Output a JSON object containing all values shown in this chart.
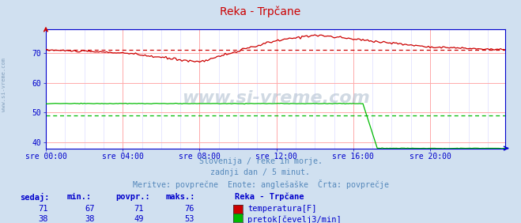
{
  "title": "Reka - Trpčane",
  "background_color": "#d0e0f0",
  "plot_bg_color": "#ffffff",
  "grid_color_major": "#ffaaaa",
  "grid_color_minor": "#ddddff",
  "xlim": [
    0,
    287
  ],
  "ylim": [
    38,
    78
  ],
  "yticks": [
    40,
    50,
    60,
    70
  ],
  "xtick_labels": [
    "sre 00:00",
    "sre 04:00",
    "sre 08:00",
    "sre 12:00",
    "sre 16:00",
    "sre 20:00"
  ],
  "xtick_positions": [
    0,
    48,
    96,
    144,
    192,
    240
  ],
  "temp_color": "#cc0000",
  "flow_color": "#00bb00",
  "temp_avg": 71,
  "flow_avg": 49,
  "subtitle1": "Slovenija / reke in morje.",
  "subtitle2": "zadnji dan / 5 minut.",
  "subtitle3": "Meritve: povprečne  Enote: anglešaške  Črta: povprečje",
  "subtitle_color": "#5588bb",
  "label_color": "#0000cc",
  "watermark": "www.si-vreme.com",
  "legend_title": "Reka - Trpčane",
  "table_headers": [
    "sedaj:",
    "min.:",
    "povpr.:",
    "maks.:"
  ],
  "row1": [
    71,
    67,
    71,
    76
  ],
  "row2": [
    38,
    38,
    49,
    53
  ],
  "row1_label": "temperatura[F]",
  "row2_label": "pretok[čevelj3/min]",
  "axis_color": "#0000cc",
  "title_color": "#cc0000"
}
